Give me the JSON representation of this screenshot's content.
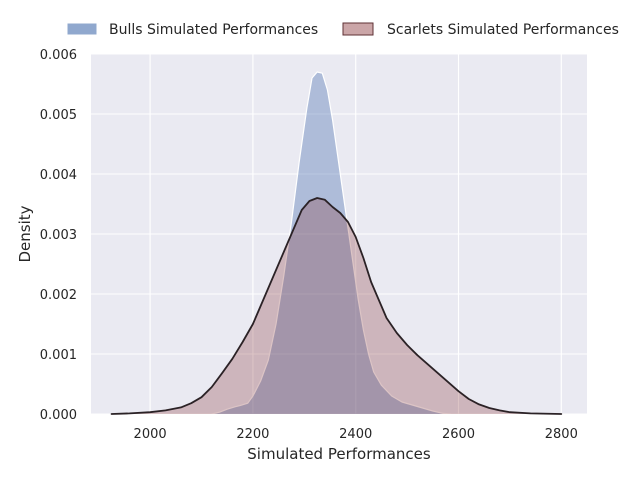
{
  "chart_data": {
    "type": "area",
    "xlabel": "Simulated Performances",
    "ylabel": "Density",
    "xlim": [
      1885,
      2850
    ],
    "ylim": [
      0,
      0.006
    ],
    "xticks": [
      2000,
      2200,
      2400,
      2600,
      2800
    ],
    "yticks": [
      0.0,
      0.001,
      0.002,
      0.003,
      0.004,
      0.005,
      0.006
    ],
    "ytick_labels": [
      "0.000",
      "0.001",
      "0.002",
      "0.003",
      "0.004",
      "0.005",
      "0.006"
    ],
    "grid": true,
    "legend_position": "top",
    "series": [
      {
        "name": "Bulls Simulated Performances",
        "fill_color": "#4c72b0",
        "fill_opacity": 0.38,
        "line_color": "#ffffff",
        "points": [
          [
            2120,
            0.0
          ],
          [
            2135,
            3e-05
          ],
          [
            2150,
            8e-05
          ],
          [
            2165,
            0.00012
          ],
          [
            2175,
            0.00014
          ],
          [
            2190,
            0.00018
          ],
          [
            2200,
            0.0003
          ],
          [
            2215,
            0.00055
          ],
          [
            2230,
            0.0009
          ],
          [
            2245,
            0.0015
          ],
          [
            2260,
            0.0023
          ],
          [
            2275,
            0.0032
          ],
          [
            2290,
            0.0042
          ],
          [
            2305,
            0.0051
          ],
          [
            2315,
            0.0056
          ],
          [
            2325,
            0.0057
          ],
          [
            2335,
            0.00568
          ],
          [
            2345,
            0.0054
          ],
          [
            2355,
            0.0049
          ],
          [
            2365,
            0.0043
          ],
          [
            2375,
            0.0037
          ],
          [
            2385,
            0.0031
          ],
          [
            2395,
            0.0025
          ],
          [
            2405,
            0.0019
          ],
          [
            2415,
            0.0014
          ],
          [
            2425,
            0.001
          ],
          [
            2435,
            0.0007
          ],
          [
            2450,
            0.00048
          ],
          [
            2470,
            0.0003
          ],
          [
            2490,
            0.0002
          ],
          [
            2510,
            0.00015
          ],
          [
            2530,
            0.0001
          ],
          [
            2550,
            5e-05
          ],
          [
            2570,
            1e-05
          ],
          [
            2585,
            0.0
          ]
        ]
      },
      {
        "name": "Scarlets Simulated Performances",
        "fill_color": "#8c3a3e",
        "fill_opacity": 0.3,
        "line_color": "#2b2226",
        "points": [
          [
            1925,
            0.0
          ],
          [
            1960,
            1e-05
          ],
          [
            2000,
            3e-05
          ],
          [
            2030,
            6e-05
          ],
          [
            2060,
            0.00011
          ],
          [
            2080,
            0.00018
          ],
          [
            2100,
            0.00028
          ],
          [
            2120,
            0.00045
          ],
          [
            2140,
            0.00068
          ],
          [
            2160,
            0.00092
          ],
          [
            2180,
            0.0012
          ],
          [
            2200,
            0.0015
          ],
          [
            2220,
            0.0019
          ],
          [
            2240,
            0.0023
          ],
          [
            2260,
            0.0027
          ],
          [
            2280,
            0.0031
          ],
          [
            2295,
            0.0034
          ],
          [
            2310,
            0.00355
          ],
          [
            2325,
            0.0036
          ],
          [
            2340,
            0.00357
          ],
          [
            2355,
            0.00345
          ],
          [
            2370,
            0.00335
          ],
          [
            2385,
            0.0032
          ],
          [
            2400,
            0.00295
          ],
          [
            2415,
            0.0026
          ],
          [
            2430,
            0.0022
          ],
          [
            2445,
            0.0019
          ],
          [
            2460,
            0.0016
          ],
          [
            2480,
            0.00135
          ],
          [
            2500,
            0.00115
          ],
          [
            2520,
            0.00098
          ],
          [
            2540,
            0.00083
          ],
          [
            2560,
            0.00068
          ],
          [
            2580,
            0.00053
          ],
          [
            2600,
            0.00038
          ],
          [
            2620,
            0.00025
          ],
          [
            2640,
            0.00016
          ],
          [
            2660,
            0.0001
          ],
          [
            2680,
            6e-05
          ],
          [
            2700,
            3e-05
          ],
          [
            2740,
            1e-05
          ],
          [
            2800,
            0.0
          ]
        ]
      }
    ]
  }
}
